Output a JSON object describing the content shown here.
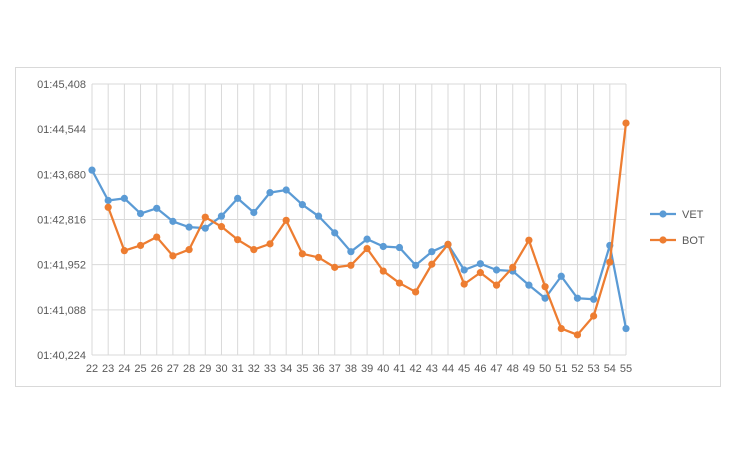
{
  "chart_data": {
    "type": "line",
    "categories": [
      "22",
      "23",
      "24",
      "25",
      "26",
      "27",
      "28",
      "29",
      "30",
      "31",
      "32",
      "33",
      "34",
      "35",
      "36",
      "37",
      "38",
      "39",
      "40",
      "41",
      "42",
      "43",
      "44",
      "45",
      "46",
      "47",
      "48",
      "49",
      "50",
      "51",
      "52",
      "53",
      "54",
      "55"
    ],
    "y_ticks": [
      "01:40,224",
      "01:41,088",
      "01:41,952",
      "01:42,816",
      "01:43,680",
      "01:44,544",
      "01:45,408"
    ],
    "ylim_seconds": [
      100.224,
      105.408
    ],
    "y_unit": "seconds (mm:ss,ms)",
    "grid": true,
    "legend_position": "right",
    "series": [
      {
        "name": "VET",
        "color": "#5b9bd5",
        "values": [
          103.76,
          103.18,
          103.22,
          102.93,
          103.03,
          102.78,
          102.67,
          102.65,
          102.88,
          103.22,
          102.95,
          103.33,
          103.38,
          103.1,
          102.88,
          102.56,
          102.2,
          102.44,
          102.3,
          102.28,
          101.94,
          102.2,
          102.34,
          101.85,
          101.97,
          101.85,
          101.83,
          101.56,
          101.31,
          101.73,
          101.31,
          101.29,
          102.32,
          100.73
        ]
      },
      {
        "name": "BOT",
        "color": "#ed7d31",
        "values": [
          null,
          103.05,
          102.22,
          102.32,
          102.48,
          102.12,
          102.24,
          102.86,
          102.68,
          102.43,
          102.24,
          102.35,
          102.8,
          102.16,
          102.09,
          101.9,
          101.94,
          102.26,
          101.83,
          101.6,
          101.43,
          101.96,
          102.34,
          101.58,
          101.8,
          101.56,
          101.9,
          102.42,
          101.53,
          100.73,
          100.61,
          100.97,
          102.0,
          104.66
        ]
      }
    ]
  }
}
